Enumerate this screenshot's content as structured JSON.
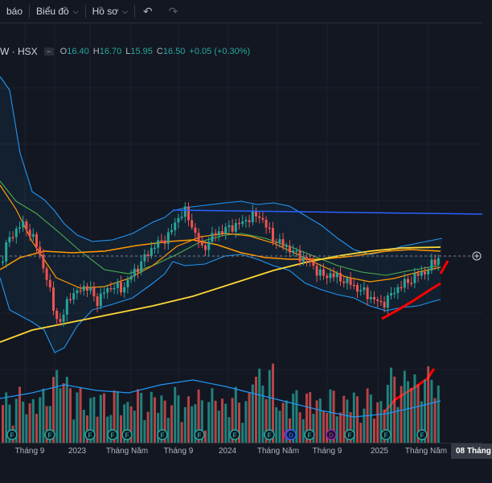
{
  "toolbar": {
    "alerts_label": "báo",
    "indicators_label": "Biểu đồ",
    "templates_label": "Hồ sơ",
    "undo_icon": "undo-icon",
    "redo_icon": "redo-icon"
  },
  "legend": {
    "symbol": "W · HSX",
    "open_label": "O",
    "open": "16.40",
    "high_label": "H",
    "high": "16.70",
    "low_label": "L",
    "low": "15.95",
    "close_label": "C",
    "close": "16.50",
    "change": "+0.05 (+0.30%)"
  },
  "xaxis": {
    "labels": [
      "Tháng 9",
      "2023",
      "Tháng Năm",
      "Tháng 9",
      "2024",
      "Tháng Năm",
      "Tháng 9",
      "2025",
      "Tháng Năm"
    ],
    "cursor_date": "08 Tháng"
  },
  "event_markers": [
    {
      "label": "F",
      "color": "#26a69a"
    },
    {
      "label": "F",
      "color": "#26a69a"
    },
    {
      "label": "F",
      "color": "#26a69a"
    },
    {
      "label": "F",
      "color": "#26a69a"
    },
    {
      "label": "F",
      "color": "#26a69a"
    },
    {
      "label": "F",
      "color": "#26a69a"
    },
    {
      "label": "F",
      "color": "#26a69a"
    },
    {
      "label": "F",
      "color": "#26a69a"
    },
    {
      "label": "F",
      "color": "#26a69a"
    },
    {
      "label": "D",
      "color": "#9c27b0"
    },
    {
      "label": "D",
      "color": "#2962ff"
    },
    {
      "label": "F",
      "color": "#26a69a"
    },
    {
      "label": "D",
      "color": "#9c27b0"
    },
    {
      "label": "F",
      "color": "#26a69a"
    },
    {
      "label": "F",
      "color": "#26a69a"
    },
    {
      "label": "F",
      "color": "#26a69a"
    }
  ],
  "colors": {
    "background": "#131722",
    "up": "#26a69a",
    "down": "#ef5350",
    "resistance_line": "#2962ff",
    "trend_marks": "#ff0000",
    "ma_long": "#fdd835",
    "ma_mid": "#ff9800",
    "ma_short": "#4caf50",
    "bollinger": "#2196f3"
  },
  "chart_data": {
    "type": "line",
    "x": [
      "Tháng 9",
      "2023",
      "Tháng Năm",
      "Tháng 9",
      "2024",
      "Tháng Năm",
      "Tháng 9",
      "2025",
      "Tháng Năm"
    ],
    "series": [
      {
        "values": [
          18.6,
          13.0,
          15.0,
          17.8,
          19.0,
          18.2,
          16.0,
          14.6,
          16.5
        ]
      }
    ],
    "annotations": [
      {
        "type": "horizontal",
        "value": 19.3
      },
      {
        "type": "dashed-horizontal",
        "value": 16.5
      }
    ],
    "grid": true,
    "legend": "top-left"
  }
}
